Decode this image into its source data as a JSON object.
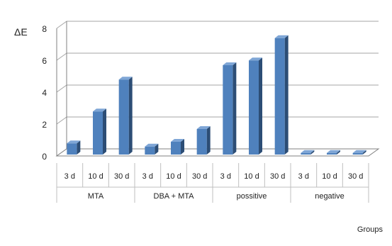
{
  "chart_data": {
    "type": "bar",
    "style": "3d-column",
    "ylabel": "ΔE",
    "xlabel": "Groups",
    "ylim": [
      0,
      8
    ],
    "yticks": [
      "0",
      "2",
      "4",
      "6",
      "8"
    ],
    "grid": true,
    "legend": "none",
    "groups": [
      {
        "name": "MTA",
        "categories": [
          "3 d",
          "10 d",
          "30 d"
        ],
        "values": [
          0.7,
          2.7,
          4.7
        ]
      },
      {
        "name": "DBA + MTA",
        "categories": [
          "3 d",
          "10 d",
          "30 d"
        ],
        "values": [
          0.5,
          0.8,
          1.6
        ]
      },
      {
        "name": "possitive",
        "categories": [
          "3 d",
          "10 d",
          "30 d"
        ],
        "values": [
          5.6,
          5.9,
          7.3
        ]
      },
      {
        "name": "negative",
        "categories": [
          "3 d",
          "10 d",
          "30 d"
        ],
        "values": [
          0.1,
          0.1,
          0.1
        ]
      }
    ],
    "colors": {
      "bar_front": "#4F81BD",
      "bar_side": "#2C4D75",
      "bar_top": "#7FA6D6",
      "grid": "#A6A6A6",
      "axis": "#808080"
    }
  }
}
